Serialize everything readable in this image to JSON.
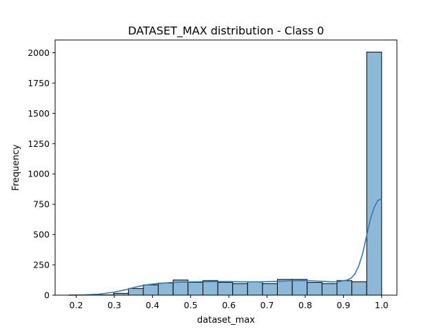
{
  "chart_data": {
    "type": "bar",
    "title": "DATASET_MAX distribution - Class 0",
    "xlabel": "dataset_max",
    "ylabel": "Frequency",
    "xlim": [
      0.145,
      1.04
    ],
    "ylim": [
      0,
      2105
    ],
    "xticks": [
      0.2,
      0.3,
      0.4,
      0.5,
      0.6,
      0.7,
      0.8,
      0.9,
      1.0
    ],
    "xtick_labels": [
      "0.2",
      "0.3",
      "0.4",
      "0.5",
      "0.6",
      "0.7",
      "0.8",
      "0.9",
      "1.0"
    ],
    "yticks": [
      0,
      250,
      500,
      750,
      1000,
      1250,
      1500,
      1750,
      2000
    ],
    "ytick_labels": [
      "0",
      "250",
      "500",
      "750",
      "1000",
      "1250",
      "1500",
      "1750",
      "2000"
    ],
    "grid": false,
    "bins": [
      {
        "x0": 0.181,
        "x1": 0.22,
        "count": 1
      },
      {
        "x0": 0.22,
        "x1": 0.259,
        "count": 1
      },
      {
        "x0": 0.259,
        "x1": 0.298,
        "count": 2
      },
      {
        "x0": 0.298,
        "x1": 0.337,
        "count": 15
      },
      {
        "x0": 0.337,
        "x1": 0.376,
        "count": 55
      },
      {
        "x0": 0.376,
        "x1": 0.415,
        "count": 85
      },
      {
        "x0": 0.415,
        "x1": 0.454,
        "count": 100
      },
      {
        "x0": 0.454,
        "x1": 0.493,
        "count": 125
      },
      {
        "x0": 0.493,
        "x1": 0.532,
        "count": 105
      },
      {
        "x0": 0.532,
        "x1": 0.571,
        "count": 120
      },
      {
        "x0": 0.571,
        "x1": 0.61,
        "count": 105
      },
      {
        "x0": 0.61,
        "x1": 0.649,
        "count": 95
      },
      {
        "x0": 0.649,
        "x1": 0.688,
        "count": 110
      },
      {
        "x0": 0.688,
        "x1": 0.727,
        "count": 95
      },
      {
        "x0": 0.727,
        "x1": 0.766,
        "count": 130
      },
      {
        "x0": 0.766,
        "x1": 0.805,
        "count": 130
      },
      {
        "x0": 0.805,
        "x1": 0.844,
        "count": 105
      },
      {
        "x0": 0.844,
        "x1": 0.883,
        "count": 95
      },
      {
        "x0": 0.883,
        "x1": 0.922,
        "count": 120
      },
      {
        "x0": 0.922,
        "x1": 0.961,
        "count": 110
      },
      {
        "x0": 0.961,
        "x1": 1.0,
        "count": 2005
      }
    ],
    "kde": {
      "x": [
        0.181,
        0.22,
        0.26,
        0.3,
        0.33,
        0.36,
        0.39,
        0.42,
        0.45,
        0.48,
        0.52,
        0.56,
        0.6,
        0.64,
        0.68,
        0.72,
        0.76,
        0.8,
        0.84,
        0.87,
        0.89,
        0.91,
        0.92,
        0.93,
        0.94,
        0.95,
        0.96,
        0.97,
        0.98,
        0.99,
        1.0
      ],
      "y": [
        0,
        2,
        8,
        25,
        45,
        70,
        88,
        98,
        104,
        108,
        110,
        112,
        112,
        110,
        110,
        113,
        118,
        120,
        115,
        110,
        112,
        125,
        140,
        175,
        240,
        340,
        480,
        620,
        720,
        780,
        795
      ]
    },
    "colors": {
      "bar_fill": "#8db9d9",
      "bar_edge": "#000000",
      "kde_line": "#2f7ab8"
    }
  }
}
